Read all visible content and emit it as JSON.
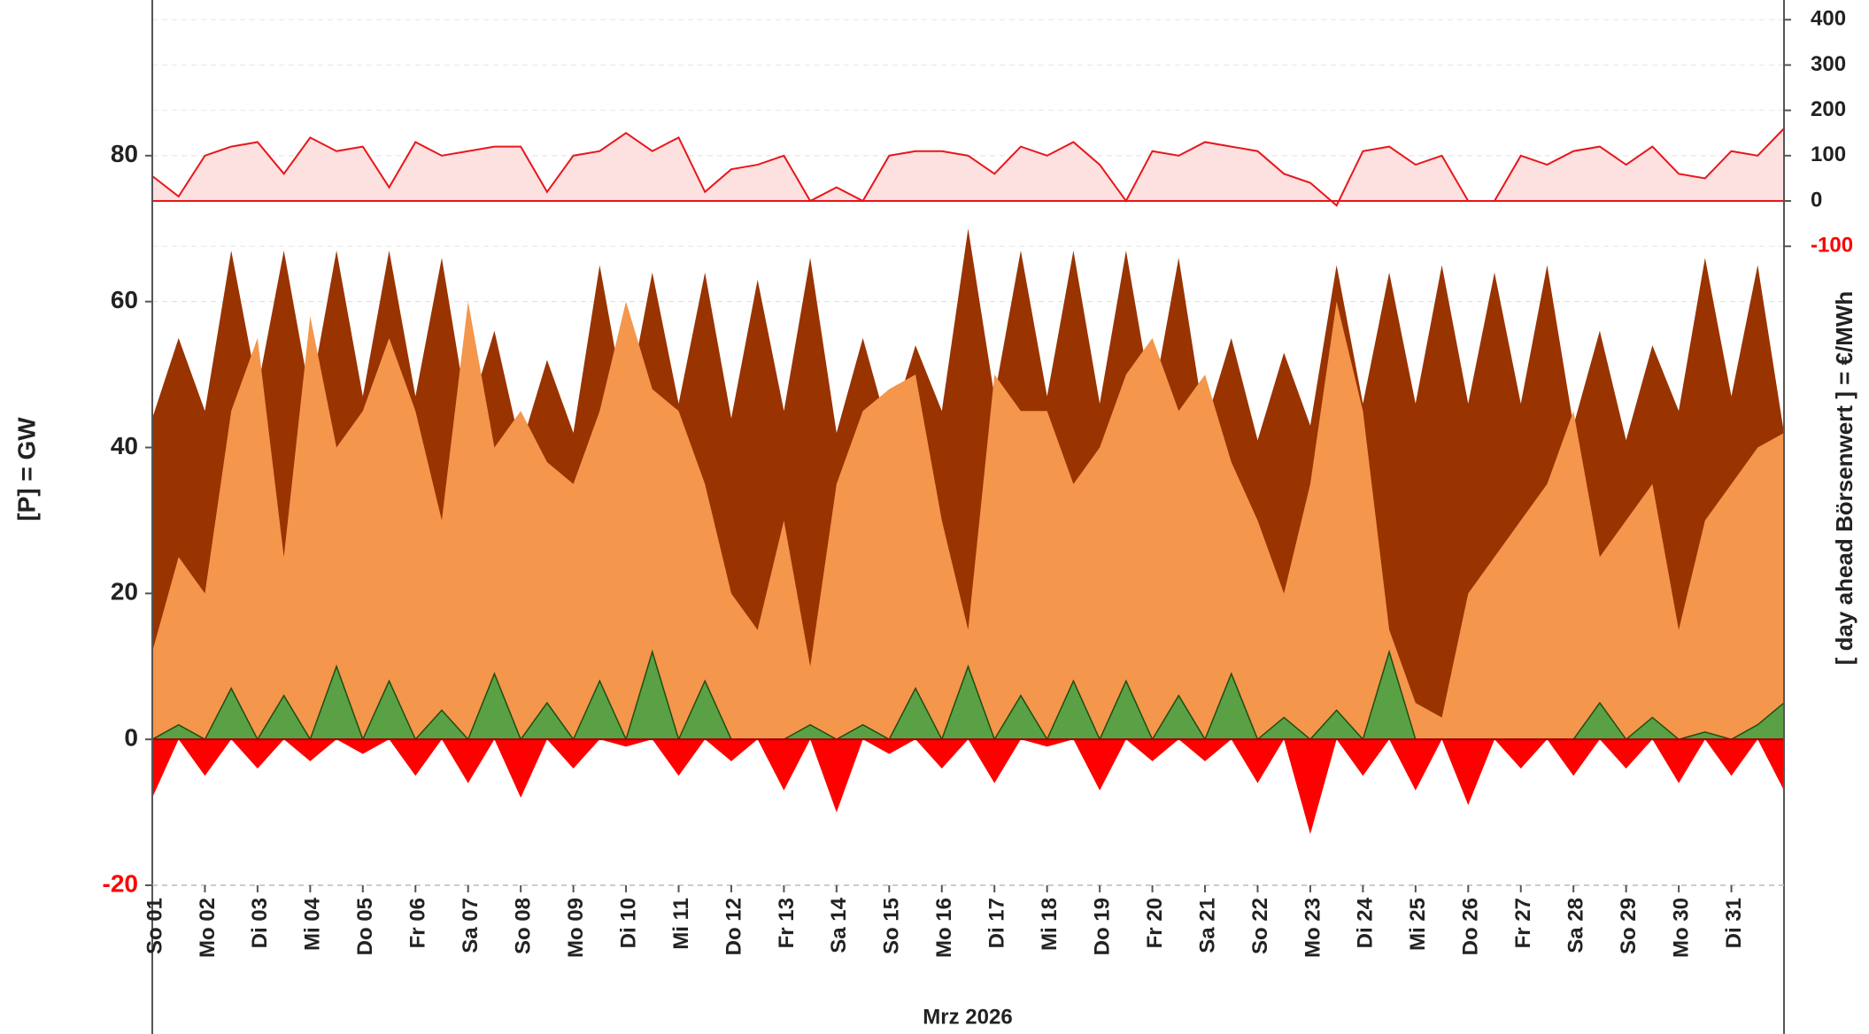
{
  "chart_data": {
    "type": "area",
    "xlabel": "Mrz 2026",
    "ylabel": "[P]  =  GW",
    "y2label": "[ day ahead Börsenwert ]  =  €/MWh",
    "x": [
      0,
      0.5,
      1,
      1.5,
      2,
      2.5,
      3,
      3.5,
      4,
      4.5,
      5,
      5.5,
      6,
      6.5,
      7,
      7.5,
      8,
      8.5,
      9,
      9.5,
      10,
      10.5,
      11,
      11.5,
      12,
      12.5,
      13,
      13.5,
      14,
      14.5,
      15,
      15.5,
      16,
      16.5,
      17,
      17.5,
      18,
      18.5,
      19,
      19.5,
      20,
      20.5,
      21,
      21.5,
      22,
      22.5,
      23,
      23.5,
      24,
      24.5,
      25,
      25.5,
      26,
      26.5,
      27,
      27.5,
      28,
      28.5,
      29,
      29.5,
      30,
      30.5,
      31
    ],
    "xlim": [
      0,
      31
    ],
    "xticks": [
      {
        "value": 0,
        "label": "So 01"
      },
      {
        "value": 1,
        "label": "Mo 02"
      },
      {
        "value": 2,
        "label": "Di 03"
      },
      {
        "value": 3,
        "label": "Mi 04"
      },
      {
        "value": 4,
        "label": "Do 05"
      },
      {
        "value": 5,
        "label": "Fr 06"
      },
      {
        "value": 6,
        "label": "Sa 07"
      },
      {
        "value": 7,
        "label": "So 08"
      },
      {
        "value": 8,
        "label": "Mo 09"
      },
      {
        "value": 9,
        "label": "Di 10"
      },
      {
        "value": 10,
        "label": "Mi 11"
      },
      {
        "value": 11,
        "label": "Do 12"
      },
      {
        "value": 12,
        "label": "Fr 13"
      },
      {
        "value": 13,
        "label": "Sa 14"
      },
      {
        "value": 14,
        "label": "So 15"
      },
      {
        "value": 15,
        "label": "Mo 16"
      },
      {
        "value": 16,
        "label": "Di 17"
      },
      {
        "value": 17,
        "label": "Mi 18"
      },
      {
        "value": 18,
        "label": "Do 19"
      },
      {
        "value": 19,
        "label": "Fr 20"
      },
      {
        "value": 20,
        "label": "Sa 21"
      },
      {
        "value": 21,
        "label": "So 22"
      },
      {
        "value": 22,
        "label": "Mo 23"
      },
      {
        "value": 23,
        "label": "Di 24"
      },
      {
        "value": 24,
        "label": "Mi 25"
      },
      {
        "value": 25,
        "label": "Do 26"
      },
      {
        "value": 26,
        "label": "Fr 27"
      },
      {
        "value": 27,
        "label": "Sa 28"
      },
      {
        "value": 28,
        "label": "So 29"
      },
      {
        "value": 29,
        "label": "Mo 30"
      },
      {
        "value": 30,
        "label": "Di 31"
      }
    ],
    "ylim": [
      -20,
      100
    ],
    "yticks": [
      -20,
      0,
      20,
      40,
      60,
      80
    ],
    "y2lim": [
      -1510,
      422
    ],
    "y2ticks": [
      -100,
      0,
      100,
      200,
      300,
      400
    ],
    "grid": true,
    "series": [
      {
        "color": "#993300",
        "values": [
          44,
          55,
          45,
          67,
          48,
          67,
          47,
          67,
          47,
          67,
          47,
          66,
          44,
          56,
          40,
          52,
          42,
          65,
          45,
          64,
          46,
          64,
          44,
          63,
          45,
          66,
          42,
          55,
          42,
          54,
          45,
          70,
          47,
          67,
          47,
          67,
          46,
          67,
          46,
          66,
          43,
          55,
          41,
          53,
          43,
          65,
          46,
          64,
          46,
          65,
          46,
          64,
          46,
          65,
          43,
          56,
          41,
          54,
          45,
          66,
          47,
          65,
          42
        ]
      },
      {
        "color": "#f4964b",
        "values": [
          12,
          25,
          20,
          45,
          55,
          25,
          58,
          40,
          45,
          55,
          45,
          30,
          60,
          40,
          45,
          38,
          35,
          45,
          60,
          48,
          45,
          35,
          20,
          15,
          30,
          10,
          35,
          45,
          48,
          50,
          30,
          15,
          50,
          45,
          45,
          35,
          40,
          50,
          55,
          45,
          50,
          38,
          30,
          20,
          35,
          60,
          45,
          15,
          5,
          3,
          20,
          25,
          30,
          35,
          45,
          25,
          30,
          35,
          15,
          30,
          35,
          40,
          42
        ]
      },
      {
        "color": "#5aa145",
        "values": [
          0,
          2,
          0,
          7,
          0,
          6,
          0,
          10,
          0,
          8,
          0,
          4,
          0,
          9,
          0,
          5,
          0,
          8,
          0,
          12,
          0,
          8,
          0,
          0,
          0,
          2,
          0,
          2,
          0,
          7,
          0,
          10,
          0,
          6,
          0,
          8,
          0,
          8,
          0,
          6,
          0,
          9,
          0,
          3,
          0,
          4,
          0,
          12,
          0,
          0,
          0,
          0,
          0,
          0,
          0,
          5,
          0,
          3,
          0,
          1,
          0,
          2,
          5
        ]
      },
      {
        "color": "#ff0000",
        "values": [
          -8,
          0,
          -5,
          0,
          -4,
          0,
          -3,
          0,
          -2,
          0,
          -5,
          0,
          -6,
          0,
          -8,
          0,
          -4,
          0,
          -1,
          0,
          -5,
          0,
          -3,
          0,
          -7,
          0,
          -10,
          0,
          -2,
          0,
          -4,
          0,
          -6,
          0,
          -1,
          0,
          -7,
          0,
          -3,
          0,
          -3,
          0,
          -6,
          0,
          -13,
          0,
          -5,
          0,
          -7,
          0,
          -9,
          0,
          -4,
          0,
          -5,
          0,
          -4,
          0,
          -6,
          0,
          -5,
          0,
          -7
        ]
      },
      {
        "color": "#e8161b",
        "fill": "#fde0e0",
        "axis": "y2",
        "values": [
          55,
          10,
          100,
          120,
          130,
          60,
          140,
          110,
          120,
          30,
          130,
          100,
          110,
          120,
          120,
          20,
          100,
          110,
          150,
          110,
          140,
          20,
          70,
          80,
          100,
          0,
          30,
          0,
          100,
          110,
          110,
          100,
          60,
          120,
          100,
          130,
          80,
          0,
          110,
          100,
          130,
          120,
          110,
          60,
          40,
          -10,
          110,
          120,
          80,
          100,
          0,
          0,
          100,
          80,
          110,
          120,
          80,
          120,
          60,
          50,
          110,
          100,
          160
        ]
      }
    ]
  }
}
